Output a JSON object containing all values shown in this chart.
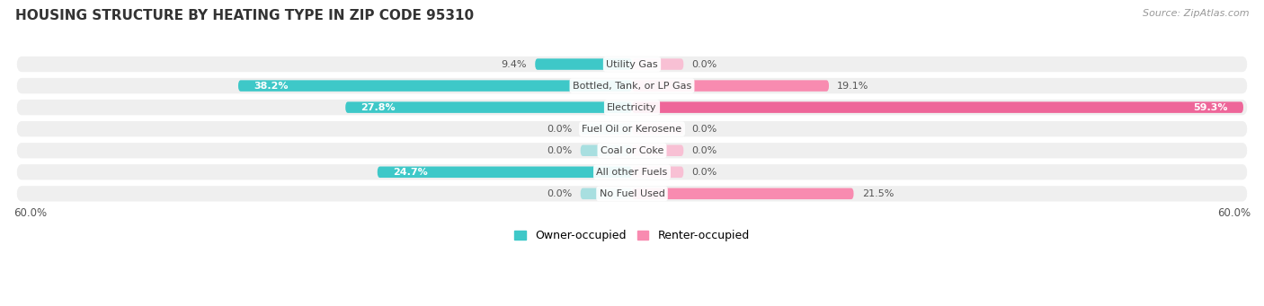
{
  "title": "HOUSING STRUCTURE BY HEATING TYPE IN ZIP CODE 95310",
  "source": "Source: ZipAtlas.com",
  "categories": [
    "No Fuel Used",
    "All other Fuels",
    "Coal or Coke",
    "Fuel Oil or Kerosene",
    "Electricity",
    "Bottled, Tank, or LP Gas",
    "Utility Gas"
  ],
  "owner_values": [
    0.0,
    24.7,
    0.0,
    0.0,
    27.8,
    38.2,
    9.4
  ],
  "renter_values": [
    21.5,
    0.0,
    0.0,
    0.0,
    59.3,
    19.1,
    0.0
  ],
  "owner_color": "#3EC8C8",
  "renter_color": "#F88BB0",
  "renter_color_electricity": "#EE6699",
  "owner_label": "Owner-occupied",
  "renter_label": "Renter-occupied",
  "xlim": 60.0,
  "axis_label_left": "60.0%",
  "axis_label_right": "60.0%",
  "background_color": "#ffffff",
  "row_bg_color": "#efefef",
  "title_fontsize": 11,
  "source_fontsize": 8,
  "stub_value": 5.0,
  "stub_owner_color": "#A8DFE0",
  "stub_renter_color": "#F8C0D4"
}
